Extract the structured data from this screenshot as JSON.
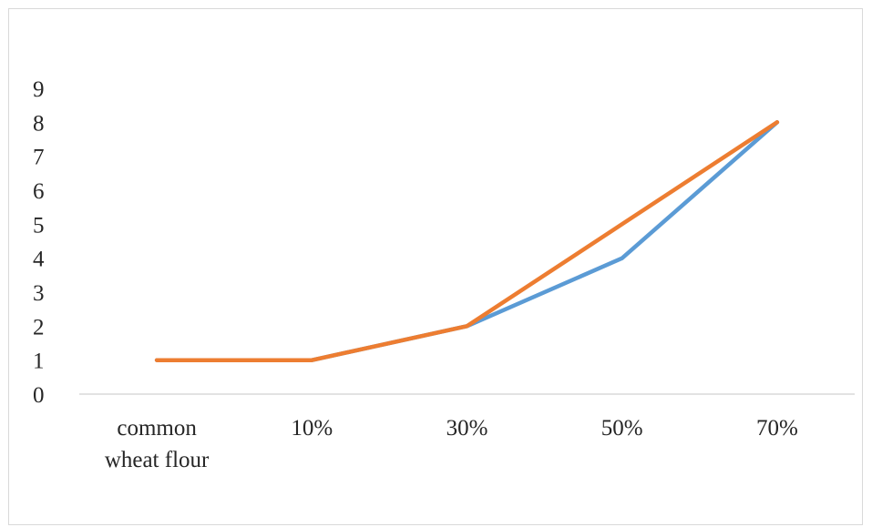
{
  "chart_data": {
    "type": "line",
    "categories": [
      "common wheat flour",
      "10%",
      "30%",
      "50%",
      "70%"
    ],
    "category_lines": [
      [
        "common",
        "wheat flour"
      ],
      [
        "10%"
      ],
      [
        "30%"
      ],
      [
        "50%"
      ],
      [
        "70%"
      ]
    ],
    "series": [
      {
        "values": [
          1,
          1,
          2,
          4,
          8
        ],
        "color": "#5b9bd5"
      },
      {
        "values": [
          1,
          1,
          2,
          5,
          8
        ],
        "color": "#ed7d31"
      }
    ],
    "yticks": [
      "0",
      "1",
      "2",
      "3",
      "4",
      "5",
      "6",
      "7",
      "8",
      "9"
    ],
    "ylim": [
      0,
      9
    ],
    "grid": false,
    "legend": "none",
    "title": "",
    "xlabel": "",
    "ylabel": ""
  }
}
